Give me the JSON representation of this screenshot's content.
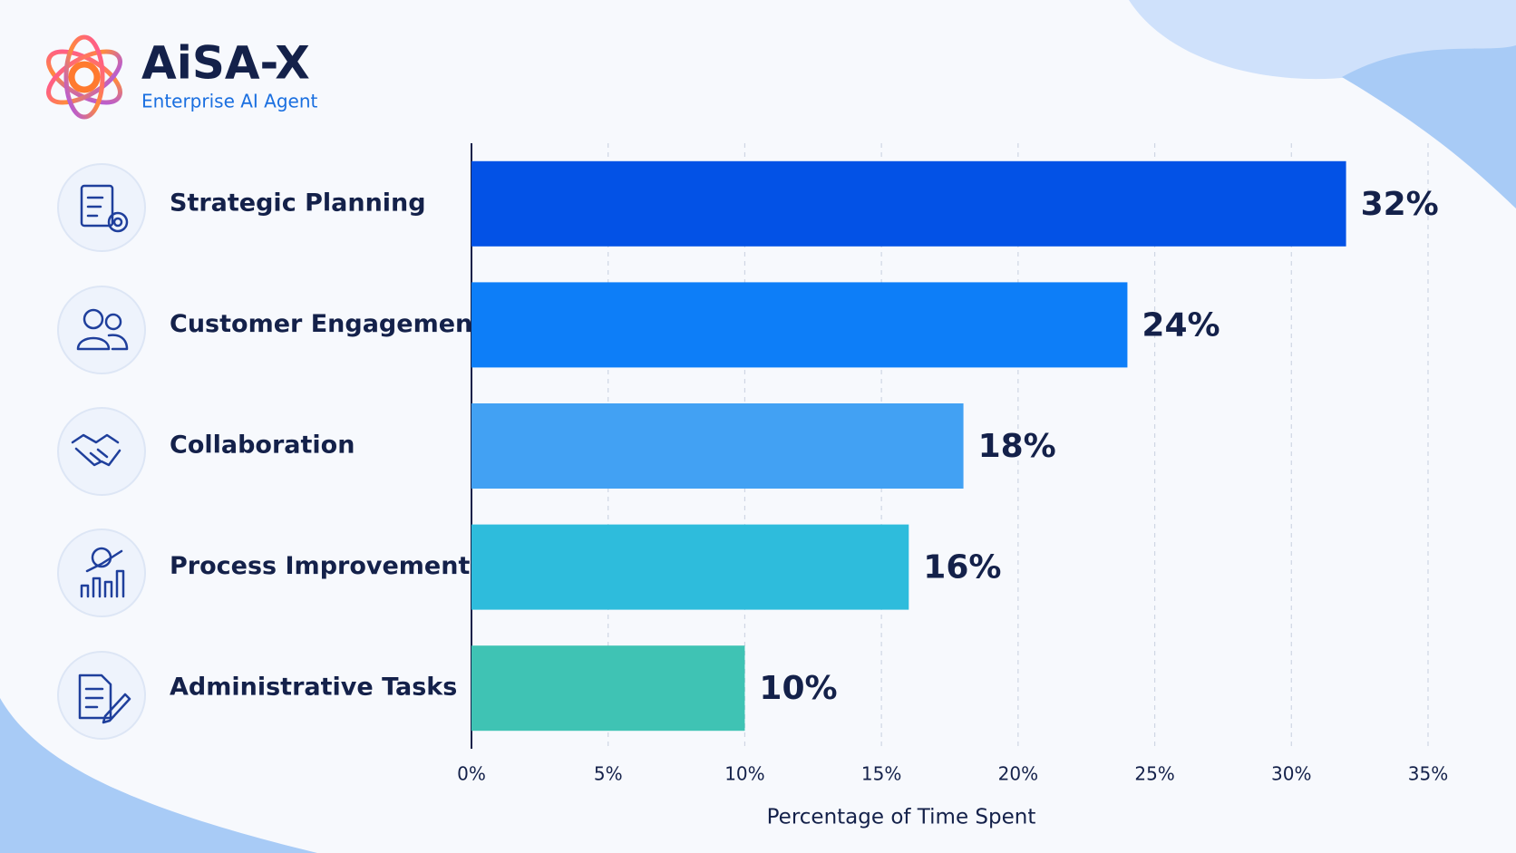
{
  "brand": {
    "name": "AiSA-X",
    "tagline": "Enterprise AI Agent"
  },
  "chart_data": {
    "type": "hbar",
    "categories": [
      "Strategic Planning",
      "Customer Engagement",
      "Collaboration",
      "Process Improvement",
      "Administrative Tasks"
    ],
    "values": [
      32,
      24,
      18,
      16,
      10
    ],
    "value_labels": [
      "32%",
      "24%",
      "18%",
      "16%",
      "10%"
    ],
    "colors": [
      "#0352e6",
      "#0d7ef8",
      "#42a1f3",
      "#2ebcdc",
      "#3fc3b4"
    ],
    "xlabel": "Percentage of Time Spent",
    "xlim": [
      0,
      35
    ],
    "xticks": [
      {
        "value": 0,
        "label": "0%"
      },
      {
        "value": 5,
        "label": "5%"
      },
      {
        "value": 10,
        "label": "10%"
      },
      {
        "value": 15,
        "label": "15%"
      },
      {
        "value": 20,
        "label": "20%"
      },
      {
        "value": 25,
        "label": "25%"
      },
      {
        "value": 30,
        "label": "30%"
      },
      {
        "value": 35,
        "label": "35%"
      }
    ],
    "grid": true
  }
}
